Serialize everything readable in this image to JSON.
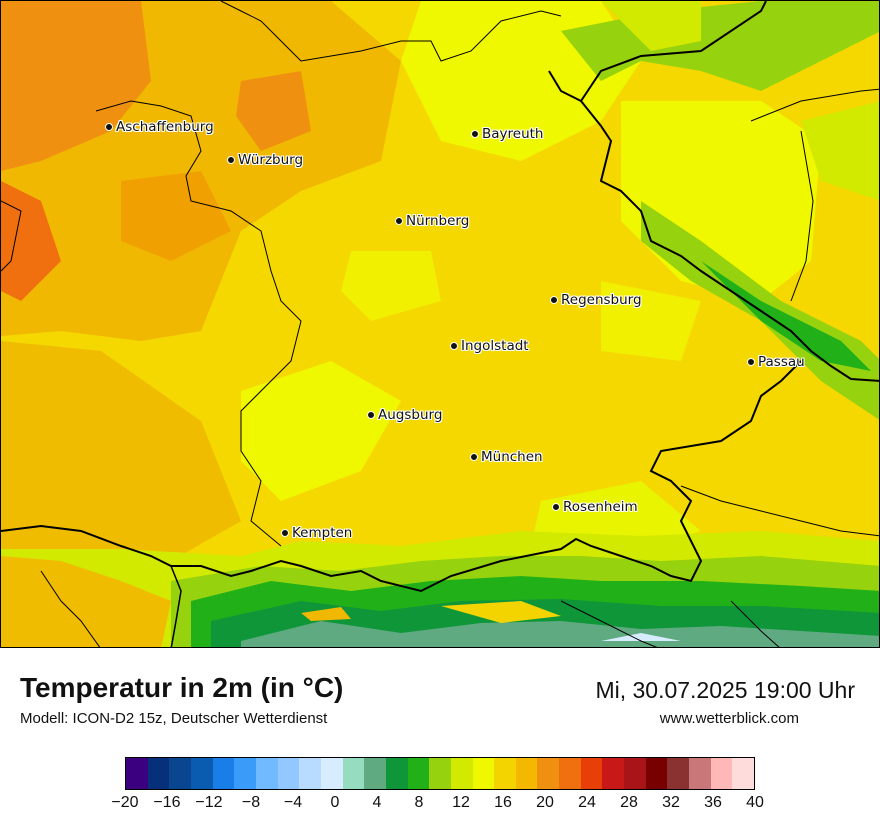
{
  "map": {
    "cities": [
      {
        "name": "Aschaffenburg"
      },
      {
        "name": "Würzburg"
      },
      {
        "name": "Bayreuth"
      },
      {
        "name": "Nürnberg"
      },
      {
        "name": "Regensburg"
      },
      {
        "name": "Ingolstadt"
      },
      {
        "name": "Passau"
      },
      {
        "name": "Augsburg"
      },
      {
        "name": "München"
      },
      {
        "name": "Rosenheim"
      },
      {
        "name": "Kempten"
      }
    ]
  },
  "footer": {
    "title": "Temperatur in 2m (in °C)",
    "model": "Modell: ICON-D2 15z, Deutscher Wetterdienst",
    "datetime": "Mi, 30.07.2025 19:00 Uhr",
    "website": "www.wetterblick.com"
  },
  "legend": {
    "colors": [
      "#3a0080",
      "#06307a",
      "#0a4690",
      "#0a5cb0",
      "#1a7ee8",
      "#3a9cf8",
      "#72baff",
      "#92c8ff",
      "#b8dcff",
      "#d8ecff",
      "#96dcc0",
      "#60aa82",
      "#0e9638",
      "#22b018",
      "#96d20e",
      "#d2ea00",
      "#f0f800",
      "#f4d400",
      "#f4b800",
      "#f09010",
      "#f07010",
      "#e83e08",
      "#c81818",
      "#a81418",
      "#780000",
      "#8a3232",
      "#c87878",
      "#ffb8b8",
      "#ffdcdc"
    ],
    "ticks": [
      "−20",
      "−16",
      "−12",
      "−8",
      "−4",
      "0",
      "4",
      "8",
      "12",
      "16",
      "20",
      "24",
      "28",
      "32",
      "36",
      "40"
    ]
  }
}
